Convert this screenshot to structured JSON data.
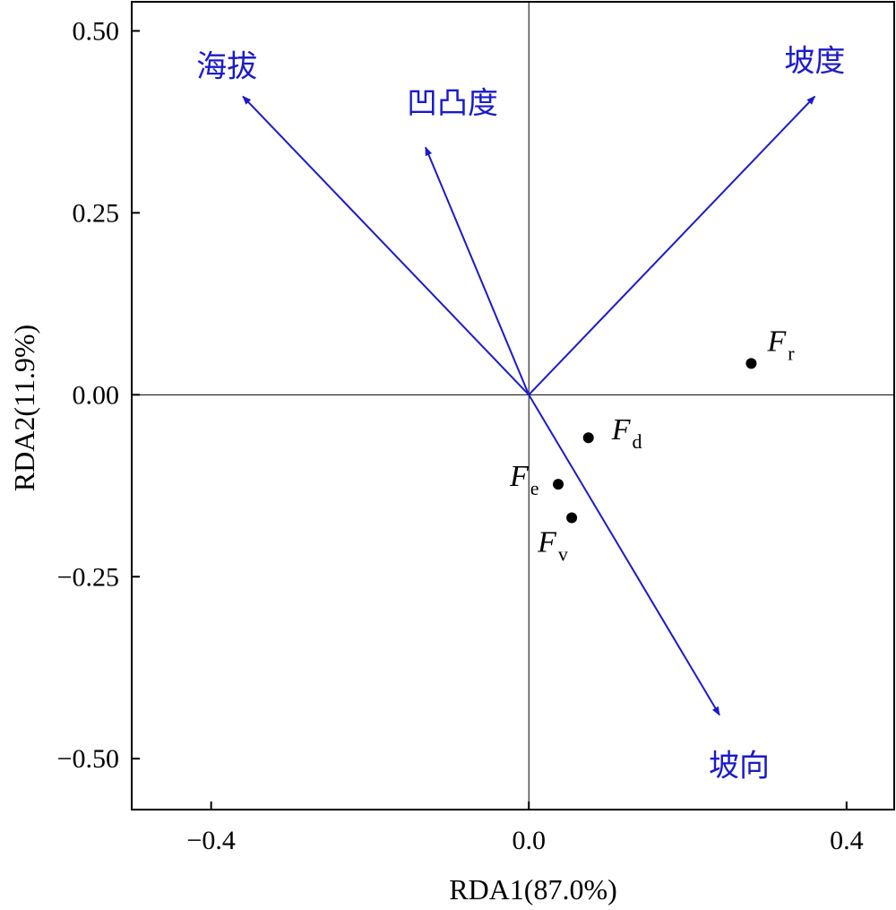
{
  "chart_data": {
    "type": "scatter",
    "xlabel": "RDA1(87.0%)",
    "ylabel": "RDA2(11.9%)",
    "xlim": [
      -0.5,
      0.46
    ],
    "ylim": [
      -0.57,
      0.54
    ],
    "x_ticks": [
      {
        "value": -0.4,
        "label": "−0.4"
      },
      {
        "value": 0.0,
        "label": "0.0"
      },
      {
        "value": 0.4,
        "label": "0.4"
      }
    ],
    "y_ticks": [
      {
        "value": 0.5,
        "label": "0.50"
      },
      {
        "value": 0.25,
        "label": "0.25"
      },
      {
        "value": 0.0,
        "label": "0.00"
      },
      {
        "value": -0.25,
        "label": "−0.25"
      },
      {
        "value": -0.5,
        "label": "−0.50"
      }
    ],
    "reference_lines": {
      "x": 0,
      "y": 0
    },
    "arrow_color": "#1a1acc",
    "arrows": [
      {
        "label": "海拔",
        "x": -0.36,
        "y": 0.41
      },
      {
        "label": "凹凸度",
        "x": -0.13,
        "y": 0.34
      },
      {
        "label": "坡度",
        "x": 0.36,
        "y": 0.41
      },
      {
        "label": "坡向",
        "x": 0.24,
        "y": -0.44
      }
    ],
    "points": [
      {
        "label": "F",
        "subscript": "r",
        "x": 0.28,
        "y": 0.043
      },
      {
        "label": "F",
        "subscript": "d",
        "x": 0.075,
        "y": -0.059
      },
      {
        "label": "F",
        "subscript": "e",
        "x": 0.037,
        "y": -0.123
      },
      {
        "label": "F",
        "subscript": "v",
        "x": 0.054,
        "y": -0.169
      }
    ]
  }
}
